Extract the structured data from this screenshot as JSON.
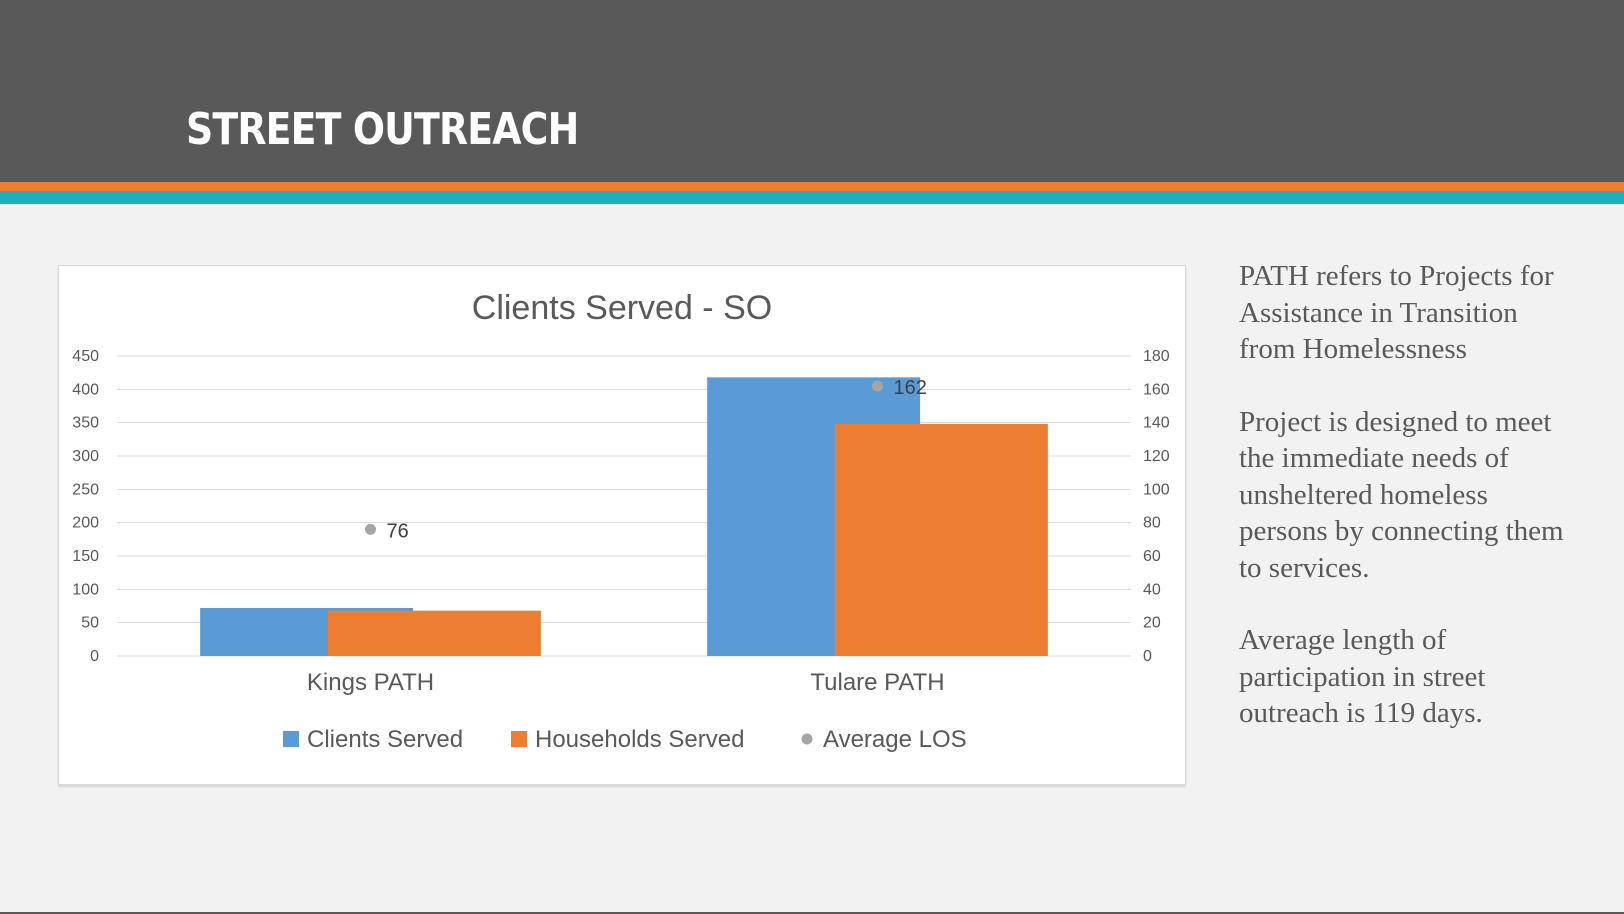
{
  "slide": {
    "title": "STREET OUTREACH",
    "notes": [
      "PATH refers to Projects for Assistance in Transition from Homelessness",
      "Project is designed to meet the immediate needs of unsheltered homeless persons by connecting them to services.",
      "Average length of participation in street outreach is 119 days."
    ]
  },
  "colors": {
    "header": "#595959",
    "accent_orange": "#ed7d31",
    "accent_teal": "#1bb0be",
    "clients": "#5b9bd5",
    "households": "#ed7d31",
    "avg_los": "#a5a5a5"
  },
  "chart_data": {
    "type": "bar",
    "title": "Clients Served - SO",
    "categories": [
      "Kings PATH",
      "Tulare PATH"
    ],
    "series": [
      {
        "name": "Clients Served",
        "values": [
          72,
          418
        ],
        "axis": "left"
      },
      {
        "name": "Households Served",
        "values": [
          68,
          348
        ],
        "axis": "left"
      },
      {
        "name": "Average LOS",
        "values": [
          76,
          162
        ],
        "axis": "right",
        "marker": "dot",
        "data_labels": true
      }
    ],
    "ylim": [
      0,
      450
    ],
    "yticks": [
      0,
      50,
      100,
      150,
      200,
      250,
      300,
      350,
      400,
      450
    ],
    "y2lim": [
      0,
      180
    ],
    "y2ticks": [
      0,
      20,
      40,
      60,
      80,
      100,
      120,
      140,
      160,
      180
    ],
    "grid": true,
    "legend": "bottom"
  }
}
